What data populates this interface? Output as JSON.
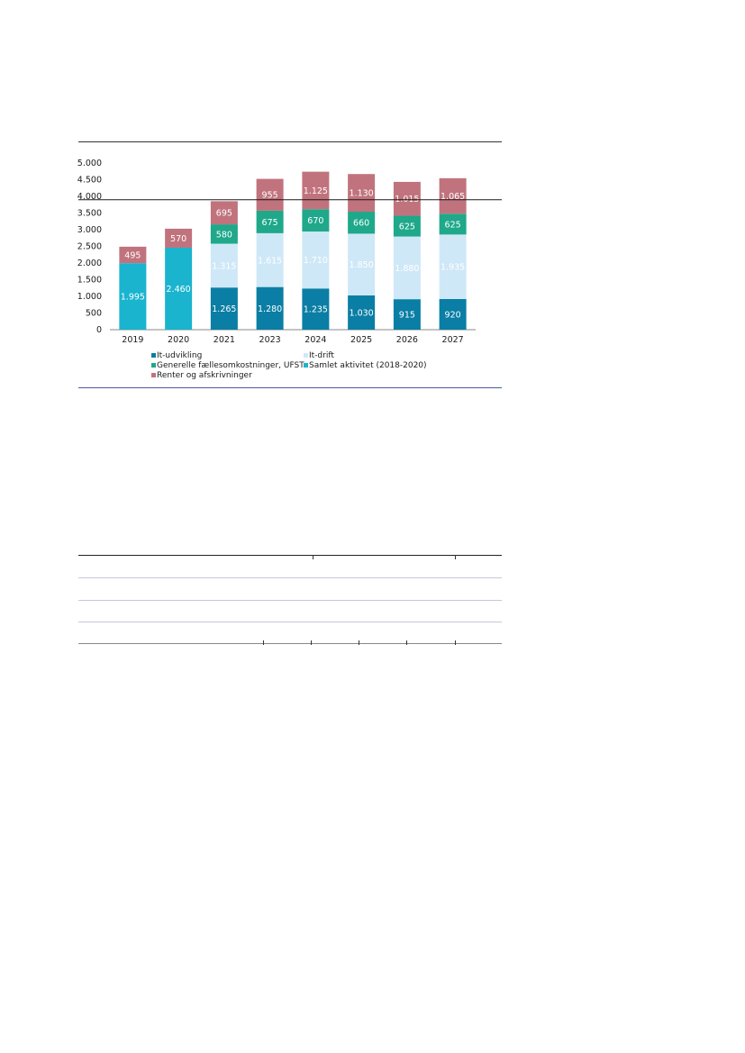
{
  "colors": {
    "it_udvikling": "#0a7ea4",
    "it_drift": "#cfe8f7",
    "faellesomk": "#1fa88a",
    "samlet": "#1ab4cf",
    "renter": "#c1737d",
    "reference_line": "#1a1a1a",
    "frame_top": "#333333",
    "frame_bottom": "#4a5a9a",
    "table_rule": "#c8c8d8"
  },
  "chart_data": {
    "type": "bar",
    "stacked": true,
    "categories": [
      "2019",
      "2020",
      "2021",
      "2023",
      "2024",
      "2025",
      "2026",
      "2027"
    ],
    "ylim": [
      0,
      5000
    ],
    "yticks": [
      0,
      500,
      1000,
      1500,
      2000,
      2500,
      3000,
      3500,
      4000,
      4500,
      5000
    ],
    "ytick_labels": [
      "0",
      "500",
      "1.000",
      "1.500",
      "2.000",
      "2.500",
      "3.000",
      "3.500",
      "4.000",
      "4.500",
      "5.000"
    ],
    "reference_line": 3900,
    "legend_position": "bottom",
    "series": [
      {
        "key": "it_udvikling",
        "name": "It-udvikling",
        "values": [
          0,
          0,
          1265,
          1280,
          1235,
          1030,
          915,
          920
        ],
        "labels": [
          "",
          "",
          "1.265",
          "1.280",
          "1.235",
          "1.030",
          "915",
          "920"
        ],
        "label_color": "#ffffff"
      },
      {
        "key": "samlet",
        "name": "Samlet aktivitet (2018-2020)",
        "values": [
          1995,
          2460,
          0,
          0,
          0,
          0,
          0,
          0
        ],
        "labels": [
          "1.995",
          "2.460",
          "",
          "",
          "",
          "",
          "",
          ""
        ],
        "label_color": "#ffffff"
      },
      {
        "key": "it_drift",
        "name": "It-drift",
        "values": [
          0,
          0,
          1315,
          1615,
          1710,
          1850,
          1880,
          1935
        ],
        "labels": [
          "",
          "",
          "1.315",
          "1.615",
          "1.710",
          "1.850",
          "1.880",
          "1.935"
        ],
        "label_color": "#ffffff"
      },
      {
        "key": "faellesomk",
        "name": "Generelle fællesomkostninger, UFST",
        "values": [
          0,
          0,
          580,
          675,
          670,
          660,
          625,
          625
        ],
        "labels": [
          "",
          "",
          "580",
          "675",
          "670",
          "660",
          "625",
          "625"
        ],
        "label_color": "#ffffff"
      },
      {
        "key": "renter",
        "name": "Renter og afskrivninger",
        "values": [
          495,
          570,
          695,
          955,
          1125,
          1130,
          1015,
          1065
        ],
        "labels": [
          "495",
          "570",
          "695",
          "955",
          "1.125",
          "1.130",
          "1.015",
          "1.065"
        ],
        "label_color": "#ffffff"
      }
    ],
    "legend": [
      {
        "key": "it_udvikling",
        "label": "It-udvikling"
      },
      {
        "key": "it_drift",
        "label": "It-drift"
      },
      {
        "key": "faellesomk",
        "label": "Generelle fællesomkostninger, UFST"
      },
      {
        "key": "samlet",
        "label": "Samlet aktivitet (2018-2020)"
      },
      {
        "key": "renter",
        "label": "Renter og afskrivninger"
      }
    ]
  }
}
